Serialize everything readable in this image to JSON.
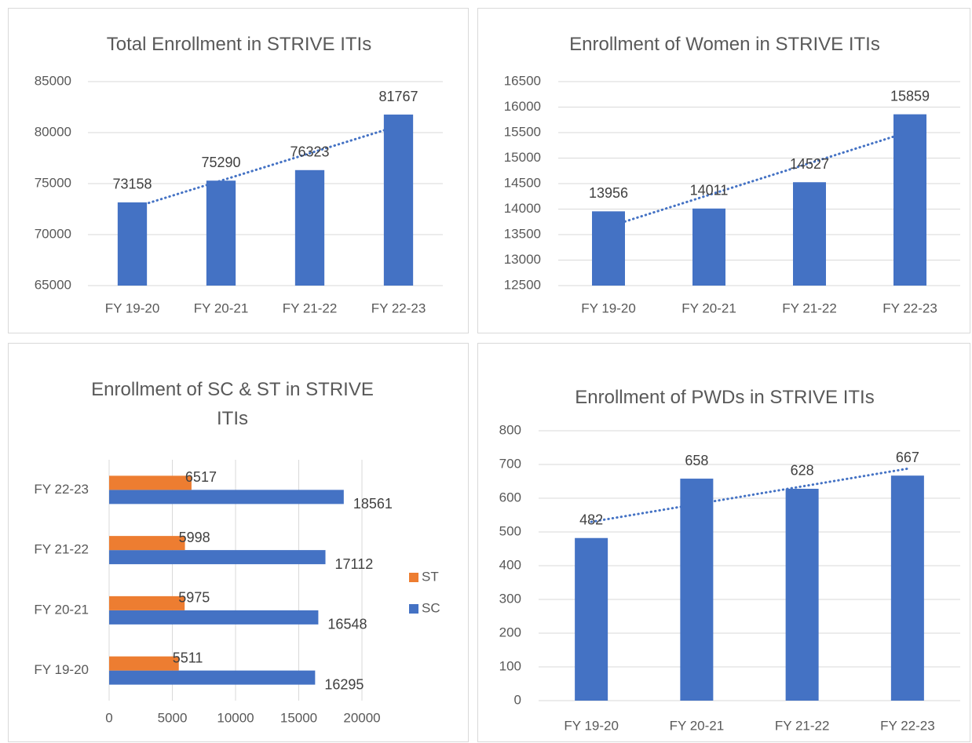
{
  "chart_data": [
    {
      "type": "bar",
      "title": "Total Enrollment in STRIVE ITIs",
      "categories": [
        "FY 19-20",
        "FY 20-21",
        "FY 21-22",
        "FY 22-23"
      ],
      "values": [
        73158,
        75290,
        76323,
        81767
      ],
      "color": "#4472c4",
      "ylim": [
        65000,
        85000
      ],
      "yticks": [
        65000,
        70000,
        75000,
        80000,
        85000
      ],
      "grid": true,
      "trendline": "linear"
    },
    {
      "type": "bar",
      "title": "Enrollment of Women in STRIVE ITIs",
      "categories": [
        "FY 19-20",
        "FY 20-21",
        "FY 21-22",
        "FY 22-23"
      ],
      "values": [
        13956,
        14011,
        14527,
        15859
      ],
      "color": "#4472c4",
      "ylim": [
        12500,
        16500
      ],
      "yticks": [
        12500,
        13000,
        13500,
        14000,
        14500,
        15000,
        15500,
        16000,
        16500
      ],
      "grid": true,
      "trendline": "linear"
    },
    {
      "type": "barh",
      "title": "Enrollment of SC & ST in STRIVE ITIs",
      "categories": [
        "FY 19-20",
        "FY 20-21",
        "FY 21-22",
        "FY 22-23"
      ],
      "series": [
        {
          "name": "SC",
          "color": "#4472c4",
          "values": [
            16295,
            16548,
            17112,
            18561
          ]
        },
        {
          "name": "ST",
          "color": "#ed7d31",
          "values": [
            5511,
            5975,
            5998,
            6517
          ]
        }
      ],
      "xlim": [
        0,
        20000
      ],
      "xticks": [
        0,
        5000,
        10000,
        15000,
        20000
      ],
      "grid": true,
      "legend": "right"
    },
    {
      "type": "bar",
      "title": "Enrollment of PWDs in STRIVE ITIs",
      "categories": [
        "FY 19-20",
        "FY 20-21",
        "FY 21-22",
        "FY 22-23"
      ],
      "values": [
        482,
        658,
        628,
        667
      ],
      "color": "#4472c4",
      "ylim": [
        0,
        800
      ],
      "yticks": [
        0,
        100,
        200,
        300,
        400,
        500,
        600,
        700,
        800
      ],
      "grid": true,
      "trendline": "linear"
    }
  ]
}
